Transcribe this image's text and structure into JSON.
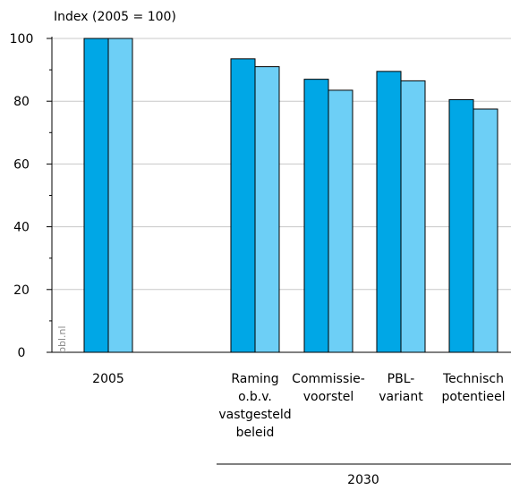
{
  "chart_data": {
    "type": "bar",
    "ylabel": "Index (2005 = 100)",
    "ylim": [
      0,
      100
    ],
    "yticks": [
      "0",
      "20",
      "40",
      "60",
      "80",
      "100"
    ],
    "grid": true,
    "group_label": "2030",
    "watermark": "pbl.nl",
    "categories": [
      [
        "2005"
      ],
      [
        "Raming",
        "o.b.v.",
        "vastgesteld",
        "beleid"
      ],
      [
        "Commissie-",
        "voorstel"
      ],
      [
        "PBL-",
        "variant"
      ],
      [
        "Technisch",
        "potentieel"
      ]
    ],
    "series": [
      {
        "values": [
          100,
          93.5,
          87,
          89.5,
          80.5
        ],
        "color": "#00a7e6"
      },
      {
        "values": [
          100,
          91,
          83.5,
          86.5,
          77.5
        ],
        "color": "#6dcff6"
      }
    ]
  }
}
